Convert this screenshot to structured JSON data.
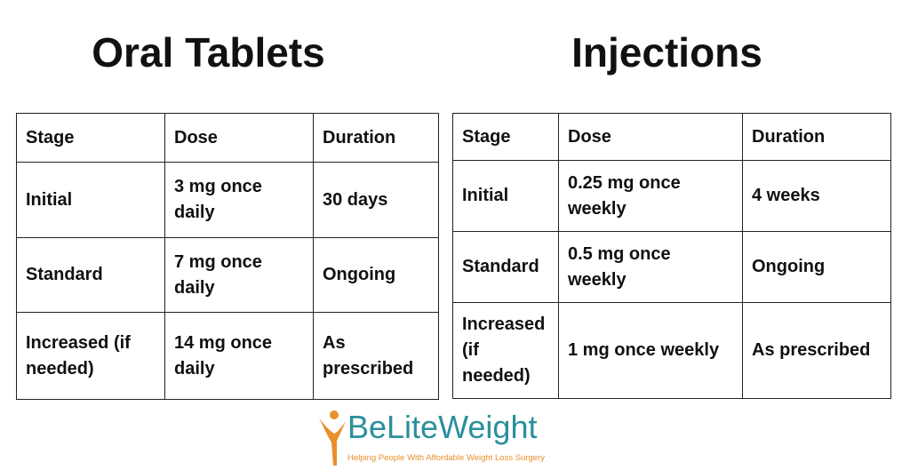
{
  "tables": [
    {
      "title": "Oral Tablets",
      "header": [
        "Stage",
        "Dose",
        "Duration"
      ],
      "rows": [
        [
          "Initial",
          "3 mg once daily",
          "30 days"
        ],
        [
          "Standard",
          "7 mg once daily",
          "Ongoing"
        ],
        [
          "Increased (if needed)",
          "14 mg once daily",
          "As prescribed"
        ]
      ]
    },
    {
      "title": "Injections",
      "header": [
        "Stage",
        "Dose",
        "Duration"
      ],
      "rows": [
        [
          "Initial",
          "0.25 mg once weekly",
          "4 weeks"
        ],
        [
          "Standard",
          "0.5 mg once weekly",
          "Ongoing"
        ],
        [
          "Increased (if needed)",
          "1 mg once weekly",
          "As prescribed"
        ]
      ]
    }
  ],
  "logo": {
    "name": "BeLiteWeight",
    "tagline": "Helping People With Affordable Weight Loss Surgery"
  }
}
